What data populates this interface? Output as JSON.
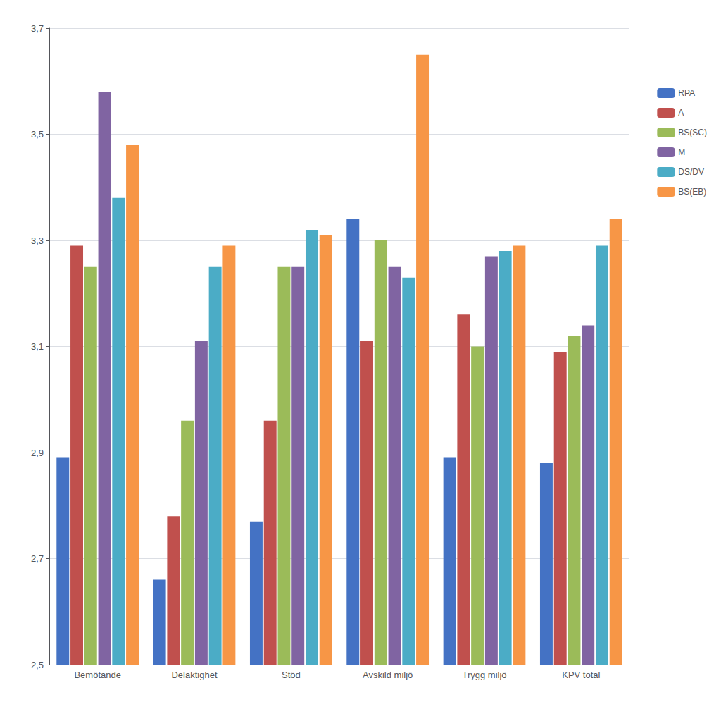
{
  "chart_data": {
    "type": "bar",
    "categories": [
      "Bemötande",
      "Delaktighet",
      "Stöd",
      "Avskild miljö",
      "Trygg miljö",
      "KPV total"
    ],
    "series": [
      {
        "name": "RPA",
        "color": "#4472C4",
        "values": [
          2.89,
          2.66,
          2.77,
          3.34,
          2.89,
          2.88
        ]
      },
      {
        "name": "A",
        "color": "#C0504D",
        "values": [
          3.29,
          2.78,
          2.96,
          3.11,
          3.16,
          3.09
        ]
      },
      {
        "name": "BS(SC)",
        "color": "#9BBB59",
        "values": [
          3.25,
          2.96,
          3.25,
          3.3,
          3.1,
          3.12
        ]
      },
      {
        "name": "M",
        "color": "#8064A2",
        "values": [
          3.58,
          3.11,
          3.25,
          3.25,
          3.27,
          3.14
        ]
      },
      {
        "name": "DS/DV",
        "color": "#4BACC6",
        "values": [
          3.38,
          3.25,
          3.32,
          3.23,
          3.28,
          3.29
        ]
      },
      {
        "name": "BS(EB)",
        "color": "#F79646",
        "values": [
          3.48,
          3.29,
          3.31,
          3.65,
          3.29,
          3.34
        ]
      }
    ],
    "ylim": [
      2.5,
      3.7
    ],
    "yticks": [
      {
        "value": 2.5,
        "label": "2,5"
      },
      {
        "value": 2.7,
        "label": "2,7"
      },
      {
        "value": 2.9,
        "label": "2,9"
      },
      {
        "value": 3.1,
        "label": "3,1"
      },
      {
        "value": 3.3,
        "label": "3,3"
      },
      {
        "value": 3.5,
        "label": "3,5"
      },
      {
        "value": 3.7,
        "label": "3,7"
      }
    ],
    "grid": true,
    "legend": "right"
  }
}
